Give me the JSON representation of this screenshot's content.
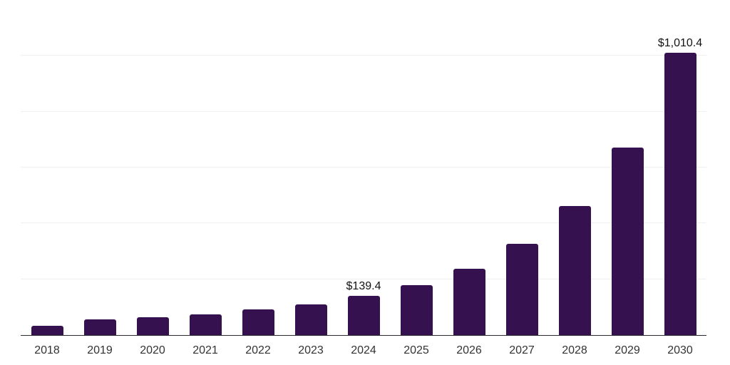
{
  "chart_data": {
    "type": "bar",
    "title": "",
    "xlabel": "",
    "ylabel": "",
    "categories": [
      "2018",
      "2019",
      "2020",
      "2021",
      "2022",
      "2023",
      "2024",
      "2025",
      "2026",
      "2027",
      "2028",
      "2029",
      "2030"
    ],
    "values": [
      34,
      55,
      63,
      74,
      91,
      110,
      139.4,
      180,
      238,
      327,
      461,
      672,
      1010.4
    ],
    "data_labels": {
      "2024": "$139.4",
      "2030": "$1,010.4"
    },
    "ylim": [
      0,
      1200
    ],
    "grid_interval": 200,
    "grid": true,
    "legend": false,
    "y_axis_ticks_visible": false,
    "colors": {
      "bar": "#351150",
      "gridline": "#f0f0f0",
      "axis_line": "#2a2a30",
      "x_label_text": "#333333",
      "value_label_text": "#131313",
      "background": "#ffffff"
    }
  }
}
